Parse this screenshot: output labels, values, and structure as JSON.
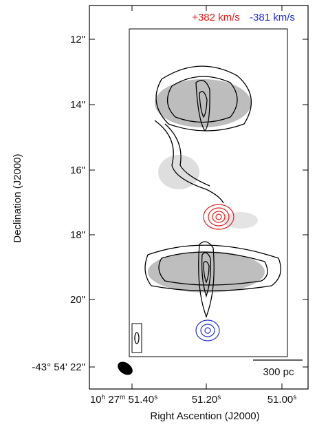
{
  "legend": {
    "red": "+382 km/s",
    "blue": "-381 km/s"
  },
  "y_axis": {
    "label": "Declination (J2000)",
    "ticks": [
      "12\"",
      "14\"",
      "16\"",
      "18\"",
      "20\"",
      "-43° 54' 22\""
    ]
  },
  "x_axis": {
    "label": "Right Ascention (J2000)",
    "ticks": [
      [
        [
          "10",
          "h"
        ],
        [
          "27",
          "m"
        ],
        [
          "51.40",
          "s"
        ]
      ],
      [
        [
          "51.20",
          "s"
        ]
      ],
      [
        [
          "51.00",
          "s"
        ]
      ]
    ]
  },
  "scale_bar": "300 pc"
}
